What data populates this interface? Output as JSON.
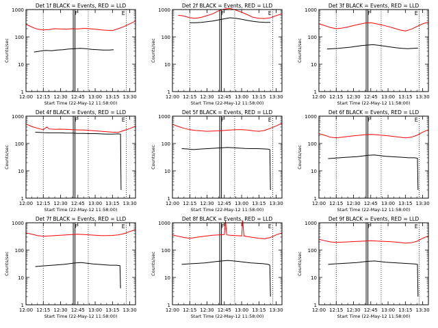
{
  "figure": {
    "x_title": "Start Time (22-May-12 11:58:00)",
    "y_title": "Counts/sec",
    "x_ticks": [
      "12:00",
      "12:15",
      "12:30",
      "12:45",
      "13:00",
      "13:15",
      "13:30"
    ],
    "y_ticks": [
      "1",
      "10",
      "100",
      "1000"
    ],
    "marker_labels": [
      "F",
      "E"
    ],
    "colors": {
      "events": "#000000",
      "lld": "#ff0000",
      "background": "#ffffff"
    }
  },
  "chart_data": [
    {
      "type": "line",
      "title": "Det 1f BLACK = Events, RED = LLD",
      "xlabel": "Start Time (22-May-12 11:58:00)",
      "ylabel": "Counts/sec",
      "x_unit": "minutes after 12:00",
      "xlim": [
        0,
        95
      ],
      "ylim": [
        1,
        1000
      ],
      "yscale": "log",
      "markers": {
        "dotted": [
          15,
          54,
          87
        ],
        "solid": [
          41,
          42.5
        ],
        "labels": {
          "F": 41,
          "E": 83
        }
      },
      "series": [
        {
          "name": "LLD",
          "color": "#ff0000",
          "x": [
            0,
            5,
            10,
            15,
            20,
            25,
            30,
            35,
            40,
            45,
            50,
            55,
            60,
            65,
            70,
            75,
            80,
            85,
            90,
            95
          ],
          "y": [
            290,
            230,
            190,
            180,
            185,
            200,
            195,
            190,
            200,
            195,
            205,
            200,
            190,
            180,
            175,
            170,
            200,
            240,
            300,
            380
          ]
        },
        {
          "name": "Events",
          "color": "#000000",
          "x": [
            7,
            12,
            17,
            22,
            27,
            32,
            37,
            42,
            47,
            52,
            57,
            62,
            67,
            72,
            76
          ],
          "y": [
            28,
            30,
            32,
            31,
            33,
            34,
            36,
            37,
            38,
            37,
            35,
            34,
            33,
            33,
            34
          ]
        }
      ]
    },
    {
      "type": "line",
      "title": "Det 2f BLACK = Events, RED = LLD",
      "xlabel": "Start Time (22-May-12 11:58:00)",
      "ylabel": "Counts/sec",
      "x_unit": "minutes after 12:00",
      "xlim": [
        0,
        95
      ],
      "ylim": [
        1,
        1000
      ],
      "yscale": "log",
      "markers": {
        "dotted": [
          15,
          54,
          87
        ],
        "solid": [
          41,
          42.5
        ],
        "labels": {
          "F": 41,
          "E": 83
        }
      },
      "series": [
        {
          "name": "LLD",
          "color": "#ff0000",
          "x": [
            5,
            10,
            15,
            20,
            25,
            30,
            35,
            40,
            45,
            50,
            55,
            60,
            65,
            70,
            75,
            80,
            85,
            90,
            95
          ],
          "y": [
            620,
            580,
            500,
            480,
            520,
            600,
            700,
            900,
            1050,
            1100,
            950,
            800,
            650,
            520,
            480,
            470,
            500,
            600,
            700
          ]
        },
        {
          "name": "Events",
          "color": "#000000",
          "x": [
            15,
            20,
            25,
            30,
            35,
            40,
            45,
            50,
            55,
            60,
            65,
            70,
            75,
            80,
            85
          ],
          "y": [
            330,
            330,
            340,
            360,
            380,
            420,
            460,
            500,
            480,
            440,
            400,
            370,
            350,
            340,
            340
          ]
        }
      ]
    },
    {
      "type": "line",
      "title": "Det 3f BLACK = Events, RED = LLD",
      "xlabel": "Start Time (22-May-12 11:58:00)",
      "ylabel": "Counts/sec",
      "x_unit": "minutes after 12:00",
      "xlim": [
        0,
        95
      ],
      "ylim": [
        1,
        1000
      ],
      "yscale": "log",
      "markers": {
        "dotted": [
          15,
          54,
          87
        ],
        "solid": [
          41,
          42.5
        ],
        "labels": {
          "F": 41,
          "E": 83
        }
      },
      "series": [
        {
          "name": "LLD",
          "color": "#ff0000",
          "x": [
            0,
            5,
            10,
            15,
            20,
            25,
            30,
            35,
            40,
            45,
            50,
            55,
            60,
            65,
            70,
            75,
            80,
            85,
            90,
            95
          ],
          "y": [
            300,
            260,
            220,
            200,
            210,
            230,
            260,
            290,
            320,
            330,
            300,
            270,
            240,
            210,
            180,
            165,
            190,
            240,
            300,
            350
          ]
        },
        {
          "name": "Events",
          "color": "#000000",
          "x": [
            7,
            12,
            17,
            22,
            27,
            32,
            37,
            42,
            47,
            52,
            57,
            62,
            67,
            72,
            77,
            82,
            86
          ],
          "y": [
            36,
            37,
            38,
            40,
            42,
            45,
            48,
            50,
            52,
            49,
            46,
            43,
            40,
            38,
            37,
            38,
            39
          ]
        }
      ]
    },
    {
      "type": "line",
      "title": "Det 4f BLACK = Events, RED = LLD",
      "xlabel": "Start Time (22-May-12 11:58:00)",
      "ylabel": "Counts/sec",
      "x_unit": "minutes after 12:00",
      "xlim": [
        0,
        95
      ],
      "ylim": [
        1,
        1000
      ],
      "yscale": "log",
      "markers": {
        "dotted": [
          15,
          54,
          87
        ],
        "solid": [
          41,
          42.5
        ],
        "labels": {
          "F": 41,
          "E": 83
        }
      },
      "series": [
        {
          "name": "LLD",
          "color": "#ff0000",
          "x": [
            0,
            5,
            10,
            15,
            18,
            20,
            25,
            30,
            35,
            40,
            45,
            50,
            55,
            60,
            65,
            70,
            75,
            80,
            85,
            90,
            95
          ],
          "y": [
            520,
            420,
            360,
            320,
            400,
            340,
            330,
            335,
            330,
            320,
            315,
            310,
            300,
            290,
            280,
            270,
            260,
            255,
            300,
            350,
            430
          ]
        },
        {
          "name": "Events",
          "color": "#000000",
          "x": [
            8,
            15,
            20,
            25,
            30,
            35,
            40,
            45,
            50,
            55,
            60,
            65,
            70,
            75,
            80,
            82,
            82.5
          ],
          "y": [
            260,
            250,
            245,
            245,
            245,
            240,
            240,
            235,
            235,
            230,
            230,
            225,
            220,
            220,
            225,
            220,
            2
          ]
        }
      ]
    },
    {
      "type": "line",
      "title": "Det 5f BLACK = Events, RED = LLD",
      "xlabel": "Start Time (22-May-12 11:58:00)",
      "ylabel": "Counts/sec",
      "x_unit": "minutes after 12:00",
      "xlim": [
        0,
        95
      ],
      "ylim": [
        1,
        1000
      ],
      "yscale": "log",
      "markers": {
        "dotted": [
          15,
          54,
          87
        ],
        "solid": [
          41,
          42.5
        ],
        "labels": {
          "F": 41,
          "E": 83
        }
      },
      "series": [
        {
          "name": "LLD",
          "color": "#ff0000",
          "x": [
            0,
            5,
            10,
            15,
            20,
            25,
            30,
            35,
            40,
            45,
            50,
            55,
            60,
            65,
            70,
            75,
            80,
            85,
            90,
            95
          ],
          "y": [
            500,
            420,
            360,
            320,
            300,
            290,
            280,
            285,
            290,
            300,
            310,
            320,
            320,
            310,
            290,
            280,
            300,
            360,
            440,
            560
          ]
        },
        {
          "name": "Events",
          "color": "#000000",
          "x": [
            8,
            13,
            18,
            23,
            28,
            33,
            38,
            43,
            48,
            53,
            58,
            63,
            68,
            73,
            78,
            83,
            84.5,
            85
          ],
          "y": [
            65,
            63,
            60,
            62,
            64,
            66,
            68,
            70,
            72,
            70,
            68,
            66,
            65,
            65,
            64,
            62,
            60,
            2
          ]
        }
      ]
    },
    {
      "type": "line",
      "title": "Det 6f BLACK = Events, RED = LLD",
      "xlabel": "Start Time (22-May-12 11:58:00)",
      "ylabel": "Counts/sec",
      "x_unit": "minutes after 12:00",
      "xlim": [
        0,
        95
      ],
      "ylim": [
        1,
        1000
      ],
      "yscale": "log",
      "markers": {
        "dotted": [
          15,
          54,
          87
        ],
        "solid": [
          41,
          42.5
        ],
        "labels": {
          "F": 41,
          "E": 83
        }
      },
      "series": [
        {
          "name": "LLD",
          "color": "#ff0000",
          "x": [
            0,
            5,
            10,
            15,
            20,
            25,
            30,
            35,
            40,
            45,
            50,
            55,
            60,
            65,
            70,
            75,
            80,
            85,
            90,
            95
          ],
          "y": [
            230,
            200,
            170,
            160,
            170,
            180,
            190,
            200,
            210,
            215,
            210,
            200,
            190,
            180,
            170,
            160,
            170,
            200,
            260,
            320
          ]
        },
        {
          "name": "Events",
          "color": "#000000",
          "x": [
            8,
            13,
            18,
            23,
            28,
            33,
            38,
            43,
            48,
            53,
            58,
            63,
            68,
            73,
            78,
            83,
            85.5,
            86
          ],
          "y": [
            28,
            29,
            30,
            31,
            32,
            33,
            35,
            37,
            38,
            36,
            34,
            33,
            32,
            31,
            30,
            30,
            29,
            2
          ]
        }
      ]
    },
    {
      "type": "line",
      "title": "Det 7f BLACK = Events, RED = LLD",
      "xlabel": "Start Time (22-May-12 11:58:00)",
      "ylabel": "Counts/sec",
      "x_unit": "minutes after 12:00",
      "xlim": [
        0,
        95
      ],
      "ylim": [
        1,
        1000
      ],
      "yscale": "log",
      "markers": {
        "dotted": [
          15,
          54,
          87
        ],
        "solid": [
          41,
          42.5
        ],
        "labels": {
          "F": 41,
          "E": 83
        }
      },
      "series": [
        {
          "name": "LLD",
          "color": "#ff0000",
          "x": [
            0,
            5,
            10,
            15,
            20,
            25,
            30,
            35,
            40,
            45,
            50,
            55,
            60,
            65,
            70,
            75,
            80,
            85,
            90,
            95
          ],
          "y": [
            430,
            380,
            340,
            320,
            330,
            340,
            350,
            360,
            370,
            380,
            370,
            360,
            350,
            340,
            340,
            345,
            360,
            400,
            480,
            560
          ]
        },
        {
          "name": "Events",
          "color": "#000000",
          "x": [
            8,
            13,
            18,
            23,
            28,
            33,
            38,
            43,
            48,
            53,
            58,
            63,
            68,
            73,
            78,
            81.5,
            82
          ],
          "y": [
            25,
            26,
            27,
            28,
            29,
            30,
            32,
            34,
            35,
            33,
            31,
            30,
            29,
            28,
            28,
            27,
            4
          ]
        }
      ]
    },
    {
      "type": "line",
      "title": "Det 8f BLACK = Events, RED = LLD",
      "xlabel": "Start Time (22-May-12 11:58:00)",
      "ylabel": "Counts/sec",
      "x_unit": "minutes after 12:00",
      "xlim": [
        0,
        95
      ],
      "ylim": [
        1,
        1000
      ],
      "yscale": "log",
      "markers": {
        "dotted": [
          15,
          54,
          87
        ],
        "solid": [
          41,
          42.5
        ],
        "labels": {
          "F": 41,
          "E": 83
        }
      },
      "series": [
        {
          "name": "LLD",
          "color": "#ff0000",
          "x": [
            0,
            5,
            10,
            15,
            20,
            25,
            30,
            35,
            40,
            45,
            46,
            47,
            50,
            55,
            60,
            61,
            62,
            65,
            70,
            75,
            80,
            85,
            90,
            95
          ],
          "y": [
            360,
            320,
            290,
            270,
            290,
            310,
            330,
            350,
            360,
            370,
            1200,
            360,
            350,
            340,
            330,
            1200,
            330,
            310,
            290,
            270,
            260,
            290,
            360,
            430
          ]
        },
        {
          "name": "Events",
          "color": "#000000",
          "x": [
            8,
            13,
            18,
            23,
            28,
            33,
            38,
            43,
            48,
            53,
            58,
            63,
            68,
            73,
            78,
            83,
            84.5,
            85
          ],
          "y": [
            30,
            31,
            32,
            33,
            34,
            36,
            38,
            40,
            42,
            40,
            38,
            36,
            34,
            33,
            32,
            30,
            28,
            2
          ]
        }
      ]
    },
    {
      "type": "line",
      "title": "Det 9f BLACK = Events, RED = LLD",
      "xlabel": "Start Time (22-May-12 11:58:00)",
      "ylabel": "Counts/sec",
      "x_unit": "minutes after 12:00",
      "xlim": [
        0,
        95
      ],
      "ylim": [
        1,
        1000
      ],
      "yscale": "log",
      "markers": {
        "dotted": [
          15,
          54,
          87
        ],
        "solid": [
          41,
          42.5
        ],
        "labels": {
          "F": 41,
          "E": 83
        }
      },
      "series": [
        {
          "name": "LLD",
          "color": "#ff0000",
          "x": [
            0,
            5,
            10,
            15,
            20,
            25,
            30,
            35,
            40,
            45,
            50,
            55,
            60,
            65,
            70,
            75,
            80,
            85,
            90,
            95
          ],
          "y": [
            250,
            220,
            200,
            190,
            195,
            200,
            205,
            210,
            215,
            220,
            215,
            210,
            205,
            200,
            190,
            180,
            185,
            210,
            270,
            330
          ]
        },
        {
          "name": "Events",
          "color": "#000000",
          "x": [
            8,
            13,
            18,
            23,
            28,
            33,
            38,
            43,
            48,
            53,
            58,
            63,
            68,
            73,
            78,
            83,
            85.5,
            86
          ],
          "y": [
            30,
            31,
            32,
            33,
            34,
            35,
            37,
            39,
            40,
            38,
            36,
            35,
            34,
            33,
            32,
            31,
            30,
            2
          ]
        }
      ]
    }
  ]
}
